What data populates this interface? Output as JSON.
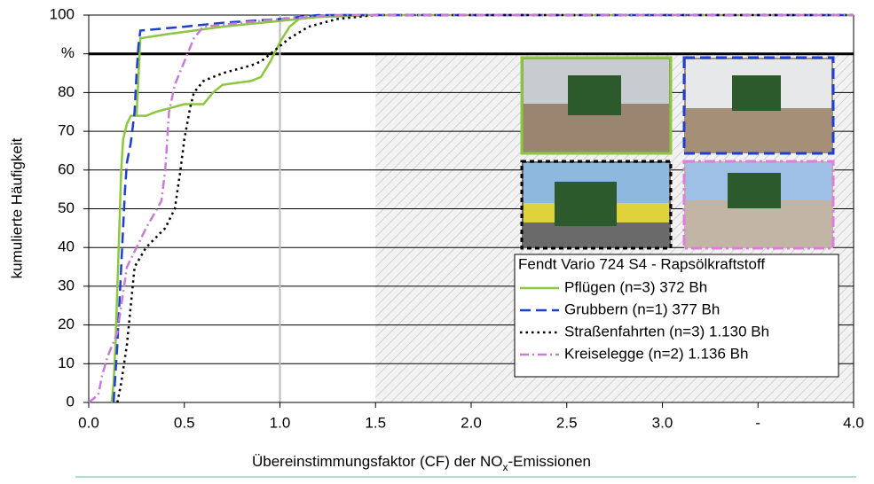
{
  "chart_data": {
    "type": "line",
    "ylabel": "kumulierte Häufigkeit",
    "xlabel": [
      "Übereinstimmungsfaktor (CF) der NO",
      "x",
      "-Emissionen"
    ],
    "legend_title": "Fendt Vario 724 S4 - Rapsölkraftstoff",
    "xlim": [
      0,
      4
    ],
    "ylim": [
      0,
      100
    ],
    "xticks": [
      {
        "value": 0,
        "label": "0.0"
      },
      0.5,
      {
        "value": 1,
        "label": "1.0"
      },
      1.5,
      {
        "value": 2,
        "label": "2.0"
      },
      2.5,
      {
        "value": 3,
        "label": "3.0"
      },
      {
        "value": 3.5,
        "label": "-"
      },
      {
        "value": 4,
        "label": "4.0"
      }
    ],
    "yticks": [
      0,
      10,
      20,
      30,
      40,
      50,
      60,
      70,
      80,
      {
        "value": 90,
        "label": "%"
      },
      100
    ],
    "grid": true,
    "series": [
      {
        "name": "Pflügen (n=3) 372 Bh",
        "color": "#8dc63f",
        "line_style": "solid",
        "x": [
          0.12,
          0.13,
          0.14,
          0.15,
          0.16,
          0.17,
          0.18,
          0.2,
          0.22,
          0.3,
          0.35,
          0.5,
          0.6,
          0.65,
          0.7,
          0.85,
          0.9,
          0.95,
          1.0,
          1.05,
          1.1,
          1.3,
          4.0,
          null,
          0.25,
          0.27,
          0.4,
          0.55,
          0.7,
          0.9,
          1.0,
          1.2,
          1.5
        ],
        "values": [
          0,
          5,
          15,
          30,
          45,
          60,
          68,
          72,
          74,
          74,
          75,
          77,
          77,
          80,
          82,
          83,
          84,
          88,
          93,
          97,
          99,
          100,
          100,
          null,
          74,
          94,
          95,
          96,
          97,
          98,
          98.5,
          99.5,
          100
        ]
      },
      {
        "name": "Grubbern (n=1) 377 Bh",
        "color": "#1f3fd1",
        "line_style": "dashed",
        "x": [
          0.13,
          0.15,
          0.17,
          0.19,
          0.2,
          0.22,
          0.24,
          0.25,
          0.26,
          0.27,
          0.5,
          0.7,
          1.0,
          1.2,
          4.0
        ],
        "values": [
          0,
          15,
          35,
          55,
          62,
          67,
          75,
          85,
          92,
          96,
          97,
          98,
          99,
          100,
          100
        ]
      },
      {
        "name": "Straßenfahrten (n=3) 1.130 Bh",
        "color": "#000000",
        "line_style": "dotted",
        "x": [
          0.15,
          0.17,
          0.2,
          0.22,
          0.24,
          0.3,
          0.4,
          0.45,
          0.48,
          0.5,
          0.53,
          0.55,
          0.6,
          0.7,
          0.85,
          0.9,
          1.0,
          1.05,
          1.15,
          1.3,
          1.5,
          4.0
        ],
        "values": [
          0,
          5,
          15,
          25,
          35,
          40,
          45,
          50,
          60,
          68,
          76,
          80,
          83,
          85,
          87,
          88,
          92,
          94,
          97,
          99,
          100,
          100
        ]
      },
      {
        "name": "Kreiselegge (n=2) 1.136 Bh",
        "color": "#c77dd6",
        "line_style": "dashdot",
        "x": [
          0.0,
          0.05,
          0.07,
          0.1,
          0.15,
          0.17,
          0.2,
          0.25,
          0.3,
          0.38,
          0.4,
          0.42,
          0.45,
          0.5,
          0.55,
          0.6,
          0.8,
          1.0,
          1.3,
          4.0
        ],
        "values": [
          0,
          2,
          7,
          12,
          18,
          25,
          35,
          40,
          45,
          52,
          60,
          75,
          82,
          88,
          94,
          97,
          98,
          99,
          100,
          100
        ]
      }
    ]
  }
}
